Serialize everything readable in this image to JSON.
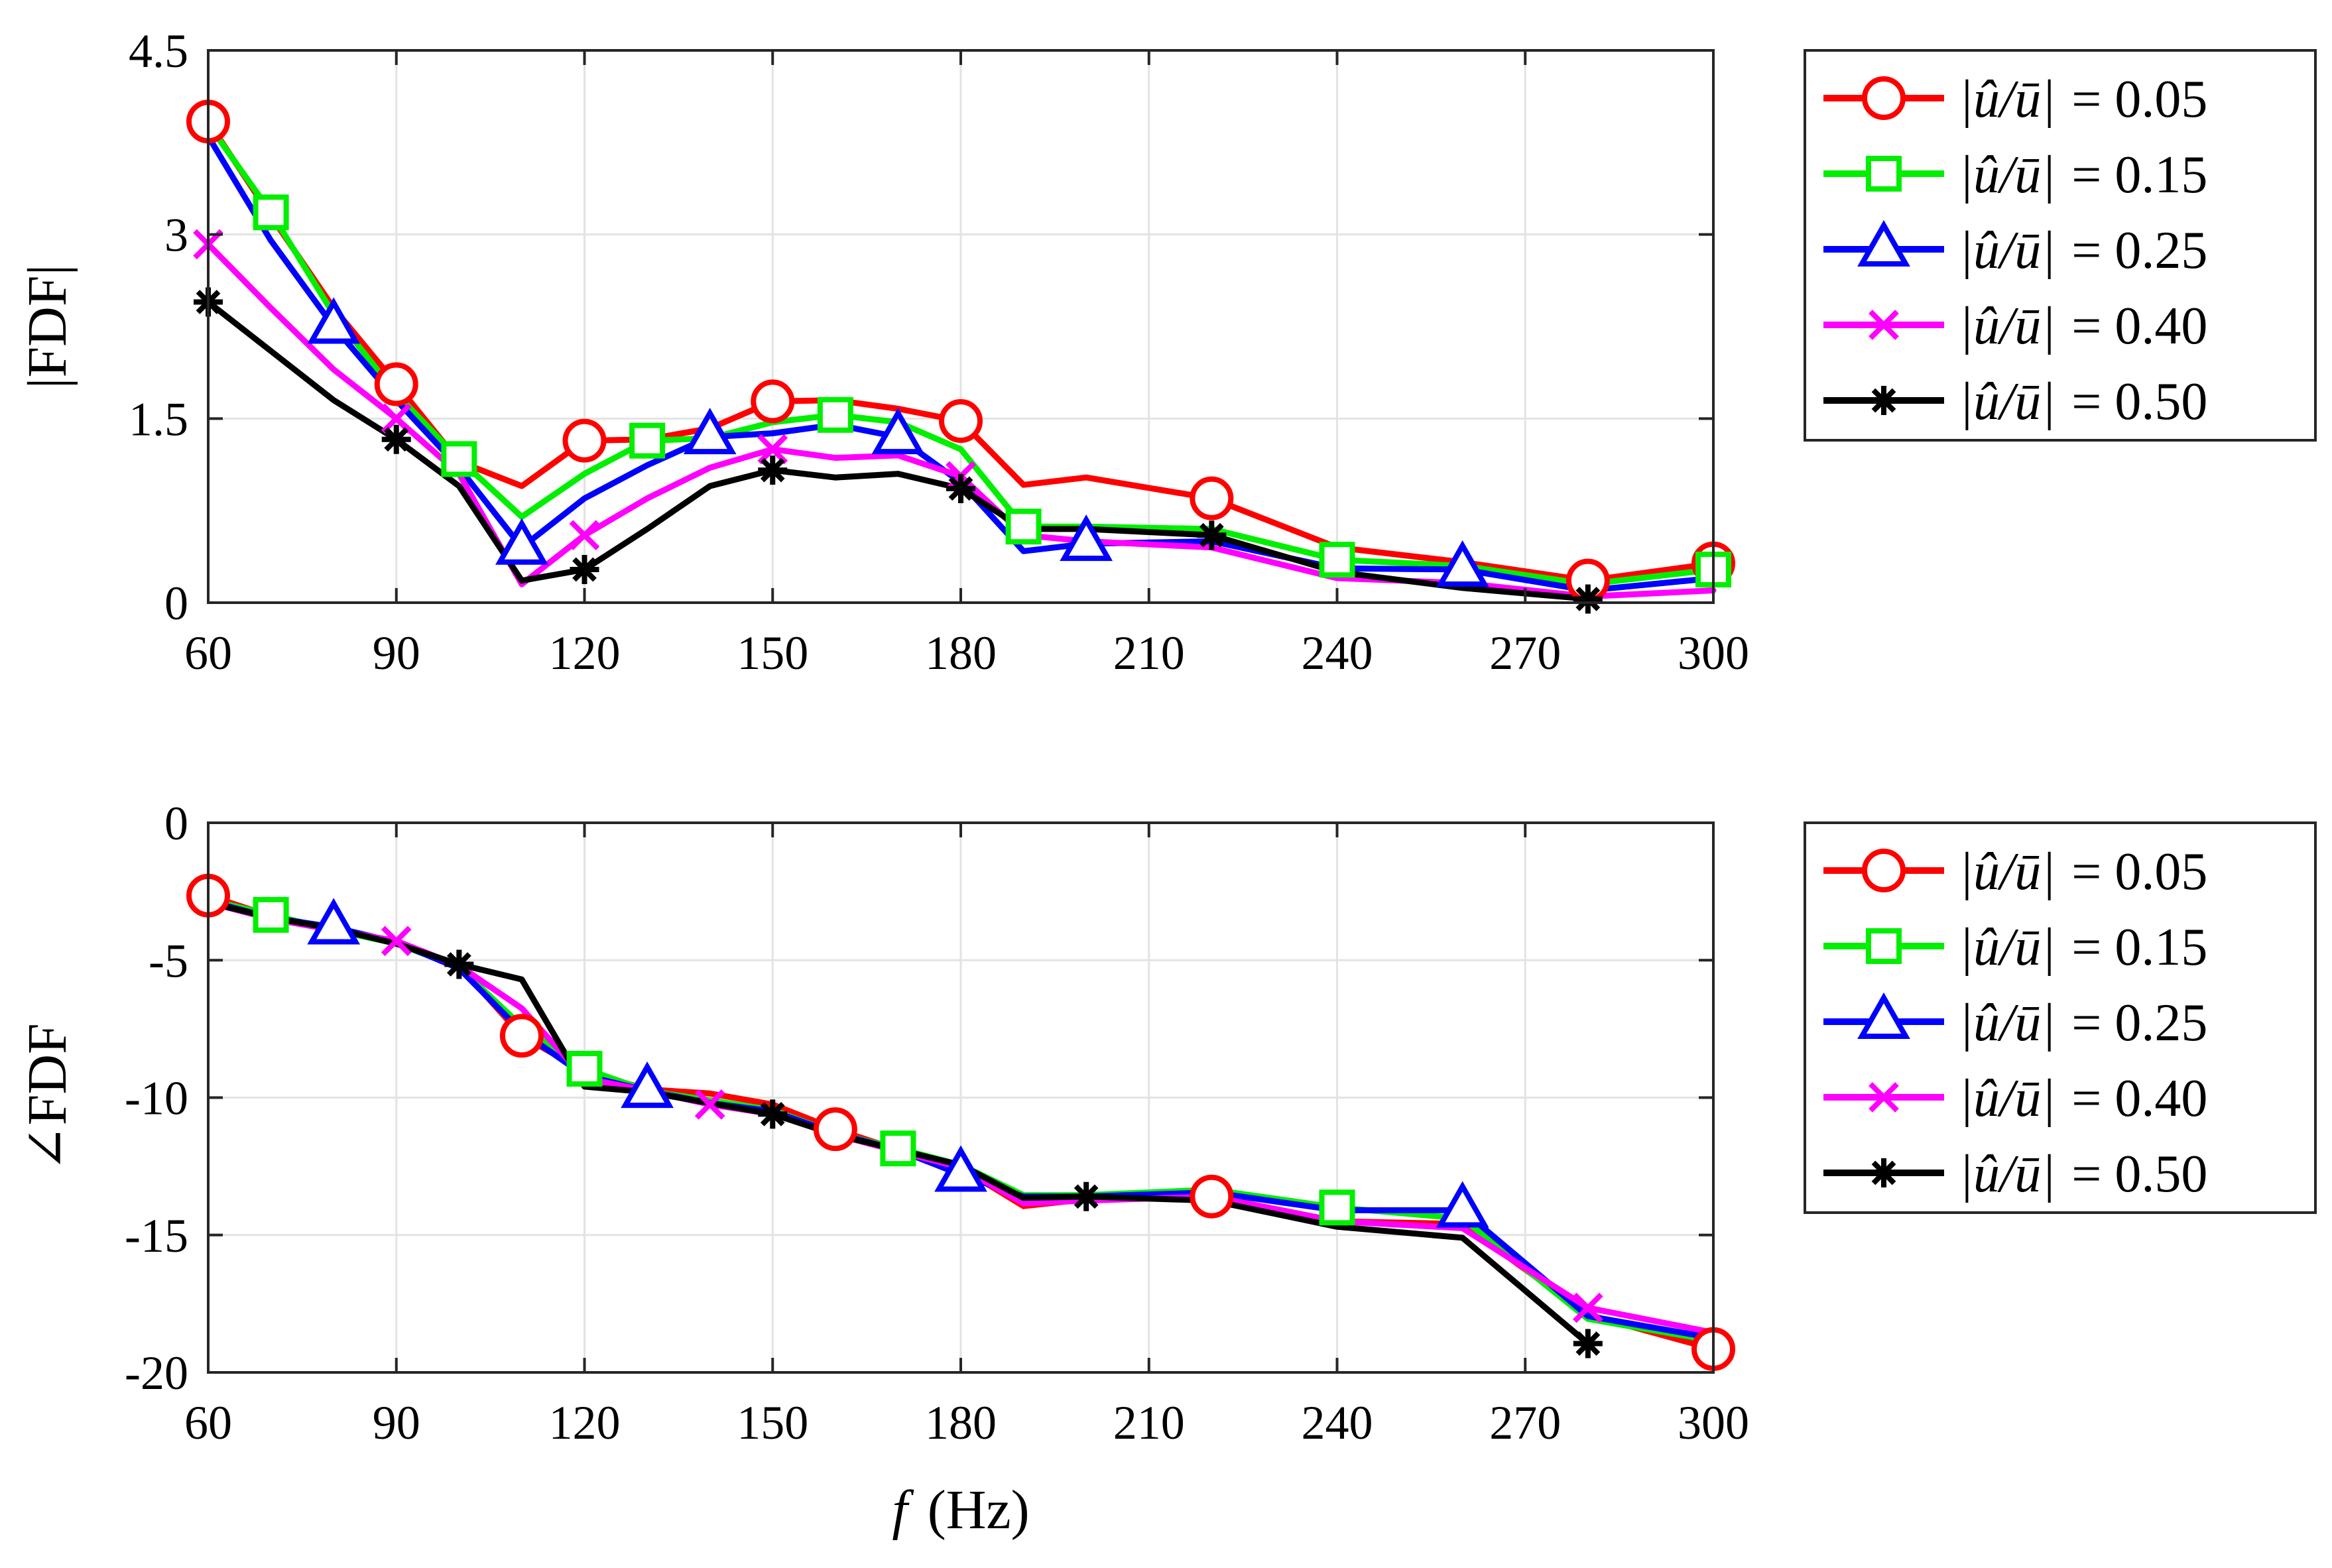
{
  "chart_data": [
    {
      "type": "line",
      "id": "magnitude",
      "title": "",
      "xlabel": "",
      "ylabel": "|FDF|",
      "xlim": [
        60,
        300
      ],
      "ylim": [
        0,
        4.5
      ],
      "xticks": [
        60,
        90,
        120,
        150,
        180,
        210,
        240,
        270,
        300
      ],
      "xtick_labels": [
        "60",
        "90",
        "120",
        "150",
        "180",
        "210",
        "240",
        "270",
        "300"
      ],
      "yticks": [
        0,
        1.5,
        3,
        4.5
      ],
      "ytick_labels": [
        "0",
        "1.5",
        "3",
        "4.5"
      ],
      "grid": true,
      "legend_position": "outside-right",
      "x": [
        60,
        70,
        80,
        90,
        100,
        110,
        120,
        130,
        140,
        150,
        160,
        170,
        180,
        190,
        200,
        220,
        240,
        260,
        280,
        300
      ],
      "series": [
        {
          "name": "|û/ū| = 0.05",
          "color": "#ff0000",
          "marker": "circle",
          "values": [
            3.92,
            3.15,
            2.4,
            1.78,
            1.15,
            0.95,
            1.32,
            1.33,
            1.42,
            1.64,
            1.65,
            1.58,
            1.48,
            0.96,
            1.02,
            0.85,
            0.45,
            0.33,
            0.18,
            0.32
          ],
          "marker_x": [
            60,
            90,
            120,
            150,
            180,
            220,
            280,
            300
          ]
        },
        {
          "name": "|û/ū| = 0.15",
          "color": "#00ee00",
          "marker": "square",
          "values": [
            3.9,
            3.18,
            2.35,
            1.7,
            1.17,
            0.7,
            1.05,
            1.32,
            1.34,
            1.47,
            1.53,
            1.47,
            1.25,
            0.62,
            0.62,
            0.6,
            0.35,
            0.3,
            0.15,
            0.27
          ],
          "marker_x": [
            70,
            100,
            130,
            160,
            190,
            240,
            300
          ]
        },
        {
          "name": "|û/ū| = 0.25",
          "color": "#0000ff",
          "marker": "triangle",
          "values": [
            3.8,
            2.95,
            2.25,
            1.65,
            1.1,
            0.45,
            0.85,
            1.12,
            1.35,
            1.38,
            1.45,
            1.35,
            0.98,
            0.42,
            0.48,
            0.5,
            0.28,
            0.27,
            0.1,
            0.2
          ],
          "marker_x": [
            80,
            110,
            140,
            170,
            200,
            260
          ]
        },
        {
          "name": "|û/ū| = 0.40",
          "color": "#ff00ff",
          "marker": "x",
          "values": [
            2.92,
            2.4,
            1.9,
            1.5,
            1.05,
            0.15,
            0.55,
            0.85,
            1.1,
            1.25,
            1.18,
            1.2,
            1.03,
            0.55,
            0.5,
            0.45,
            0.2,
            0.16,
            0.05,
            0.1
          ],
          "marker_x": [
            60,
            90,
            120,
            150,
            180
          ]
        },
        {
          "name": "|û/ū| = 0.50",
          "color": "#000000",
          "marker": "asterisk",
          "values": [
            2.45,
            2.05,
            1.65,
            1.33,
            0.95,
            0.18,
            0.27,
            0.6,
            0.95,
            1.08,
            1.02,
            1.05,
            0.93,
            0.6,
            0.6,
            0.55,
            0.25,
            0.12,
            0.03,
            null
          ],
          "marker_x": [
            60,
            90,
            120,
            150,
            180,
            220,
            280
          ]
        }
      ]
    },
    {
      "type": "line",
      "id": "phase",
      "title": "",
      "xlabel": "f (Hz)",
      "ylabel": "∠FDF",
      "xlim": [
        60,
        300
      ],
      "ylim": [
        -20,
        0
      ],
      "xticks": [
        60,
        90,
        120,
        150,
        180,
        210,
        240,
        270,
        300
      ],
      "xtick_labels": [
        "60",
        "90",
        "120",
        "150",
        "180",
        "210",
        "240",
        "270",
        "300"
      ],
      "yticks": [
        0,
        -5,
        -10,
        -15,
        -20
      ],
      "ytick_labels": [
        "0",
        "-5",
        "-10",
        "-15",
        "-20"
      ],
      "grid": true,
      "legend_position": "outside-right",
      "x": [
        60,
        70,
        80,
        90,
        100,
        110,
        120,
        130,
        140,
        150,
        160,
        170,
        180,
        190,
        200,
        220,
        240,
        260,
        280,
        300
      ],
      "series": [
        {
          "name": "|û/ū| = 0.05",
          "color": "#ff0000",
          "marker": "circle",
          "values": [
            -2.65,
            -3.4,
            -3.85,
            -4.4,
            -5.2,
            -7.75,
            -9.05,
            -9.7,
            -9.85,
            -10.25,
            -11.15,
            -11.9,
            -12.55,
            -13.95,
            -13.7,
            -13.6,
            -14.5,
            -14.6,
            -17.9,
            -19.15
          ],
          "marker_x": [
            60,
            110,
            160,
            220,
            300
          ]
        },
        {
          "name": "|û/ū| = 0.15",
          "color": "#00ee00",
          "marker": "square",
          "values": [
            -2.8,
            -3.35,
            -3.9,
            -4.4,
            -5.25,
            -7.4,
            -8.95,
            -9.75,
            -10.1,
            -10.45,
            -11.3,
            -11.85,
            -12.45,
            -13.55,
            -13.55,
            -13.35,
            -14.0,
            -14.4,
            -18.05,
            -18.85
          ],
          "marker_x": [
            70,
            120,
            170,
            240
          ]
        },
        {
          "name": "|û/ū| = 0.25",
          "color": "#0000ff",
          "marker": "triangle",
          "values": [
            -2.85,
            -3.45,
            -3.8,
            -4.35,
            -5.3,
            -7.6,
            -9.2,
            -9.75,
            -10.2,
            -10.5,
            -11.3,
            -11.9,
            -12.8,
            -13.6,
            -13.6,
            -13.45,
            -14.1,
            -14.1,
            -17.95,
            -18.75
          ],
          "marker_x": [
            80,
            130,
            180,
            260
          ]
        },
        {
          "name": "|û/ū| = 0.40",
          "color": "#ff00ff",
          "marker": "x",
          "values": [
            -2.9,
            -3.5,
            -3.9,
            -4.3,
            -5.2,
            -6.75,
            -9.3,
            -9.75,
            -10.25,
            -10.6,
            -11.35,
            -11.95,
            -12.55,
            -13.85,
            -13.75,
            -13.6,
            -14.5,
            -14.75,
            -17.65,
            -18.55
          ],
          "marker_x": [
            90,
            140,
            280
          ]
        },
        {
          "name": "|û/ū| = 0.50",
          "color": "#000000",
          "marker": "asterisk",
          "values": [
            -2.9,
            -3.45,
            -3.85,
            -4.4,
            -5.15,
            -5.7,
            -9.6,
            -9.8,
            -10.2,
            -10.6,
            -11.35,
            -11.9,
            -12.45,
            -13.65,
            -13.6,
            -13.75,
            -14.7,
            -15.1,
            -18.95,
            null
          ],
          "marker_x": [
            100,
            150,
            200,
            280
          ]
        }
      ]
    }
  ],
  "legend": {
    "entries": [
      {
        "lhs": "|û/ū|",
        "rhs": "= 0.05"
      },
      {
        "lhs": "|û/ū|",
        "rhs": "= 0.15"
      },
      {
        "lhs": "|û/ū|",
        "rhs": "= 0.25"
      },
      {
        "lhs": "|û/ū|",
        "rhs": "= 0.40"
      },
      {
        "lhs": "|û/ū|",
        "rhs": "= 0.50"
      }
    ]
  }
}
